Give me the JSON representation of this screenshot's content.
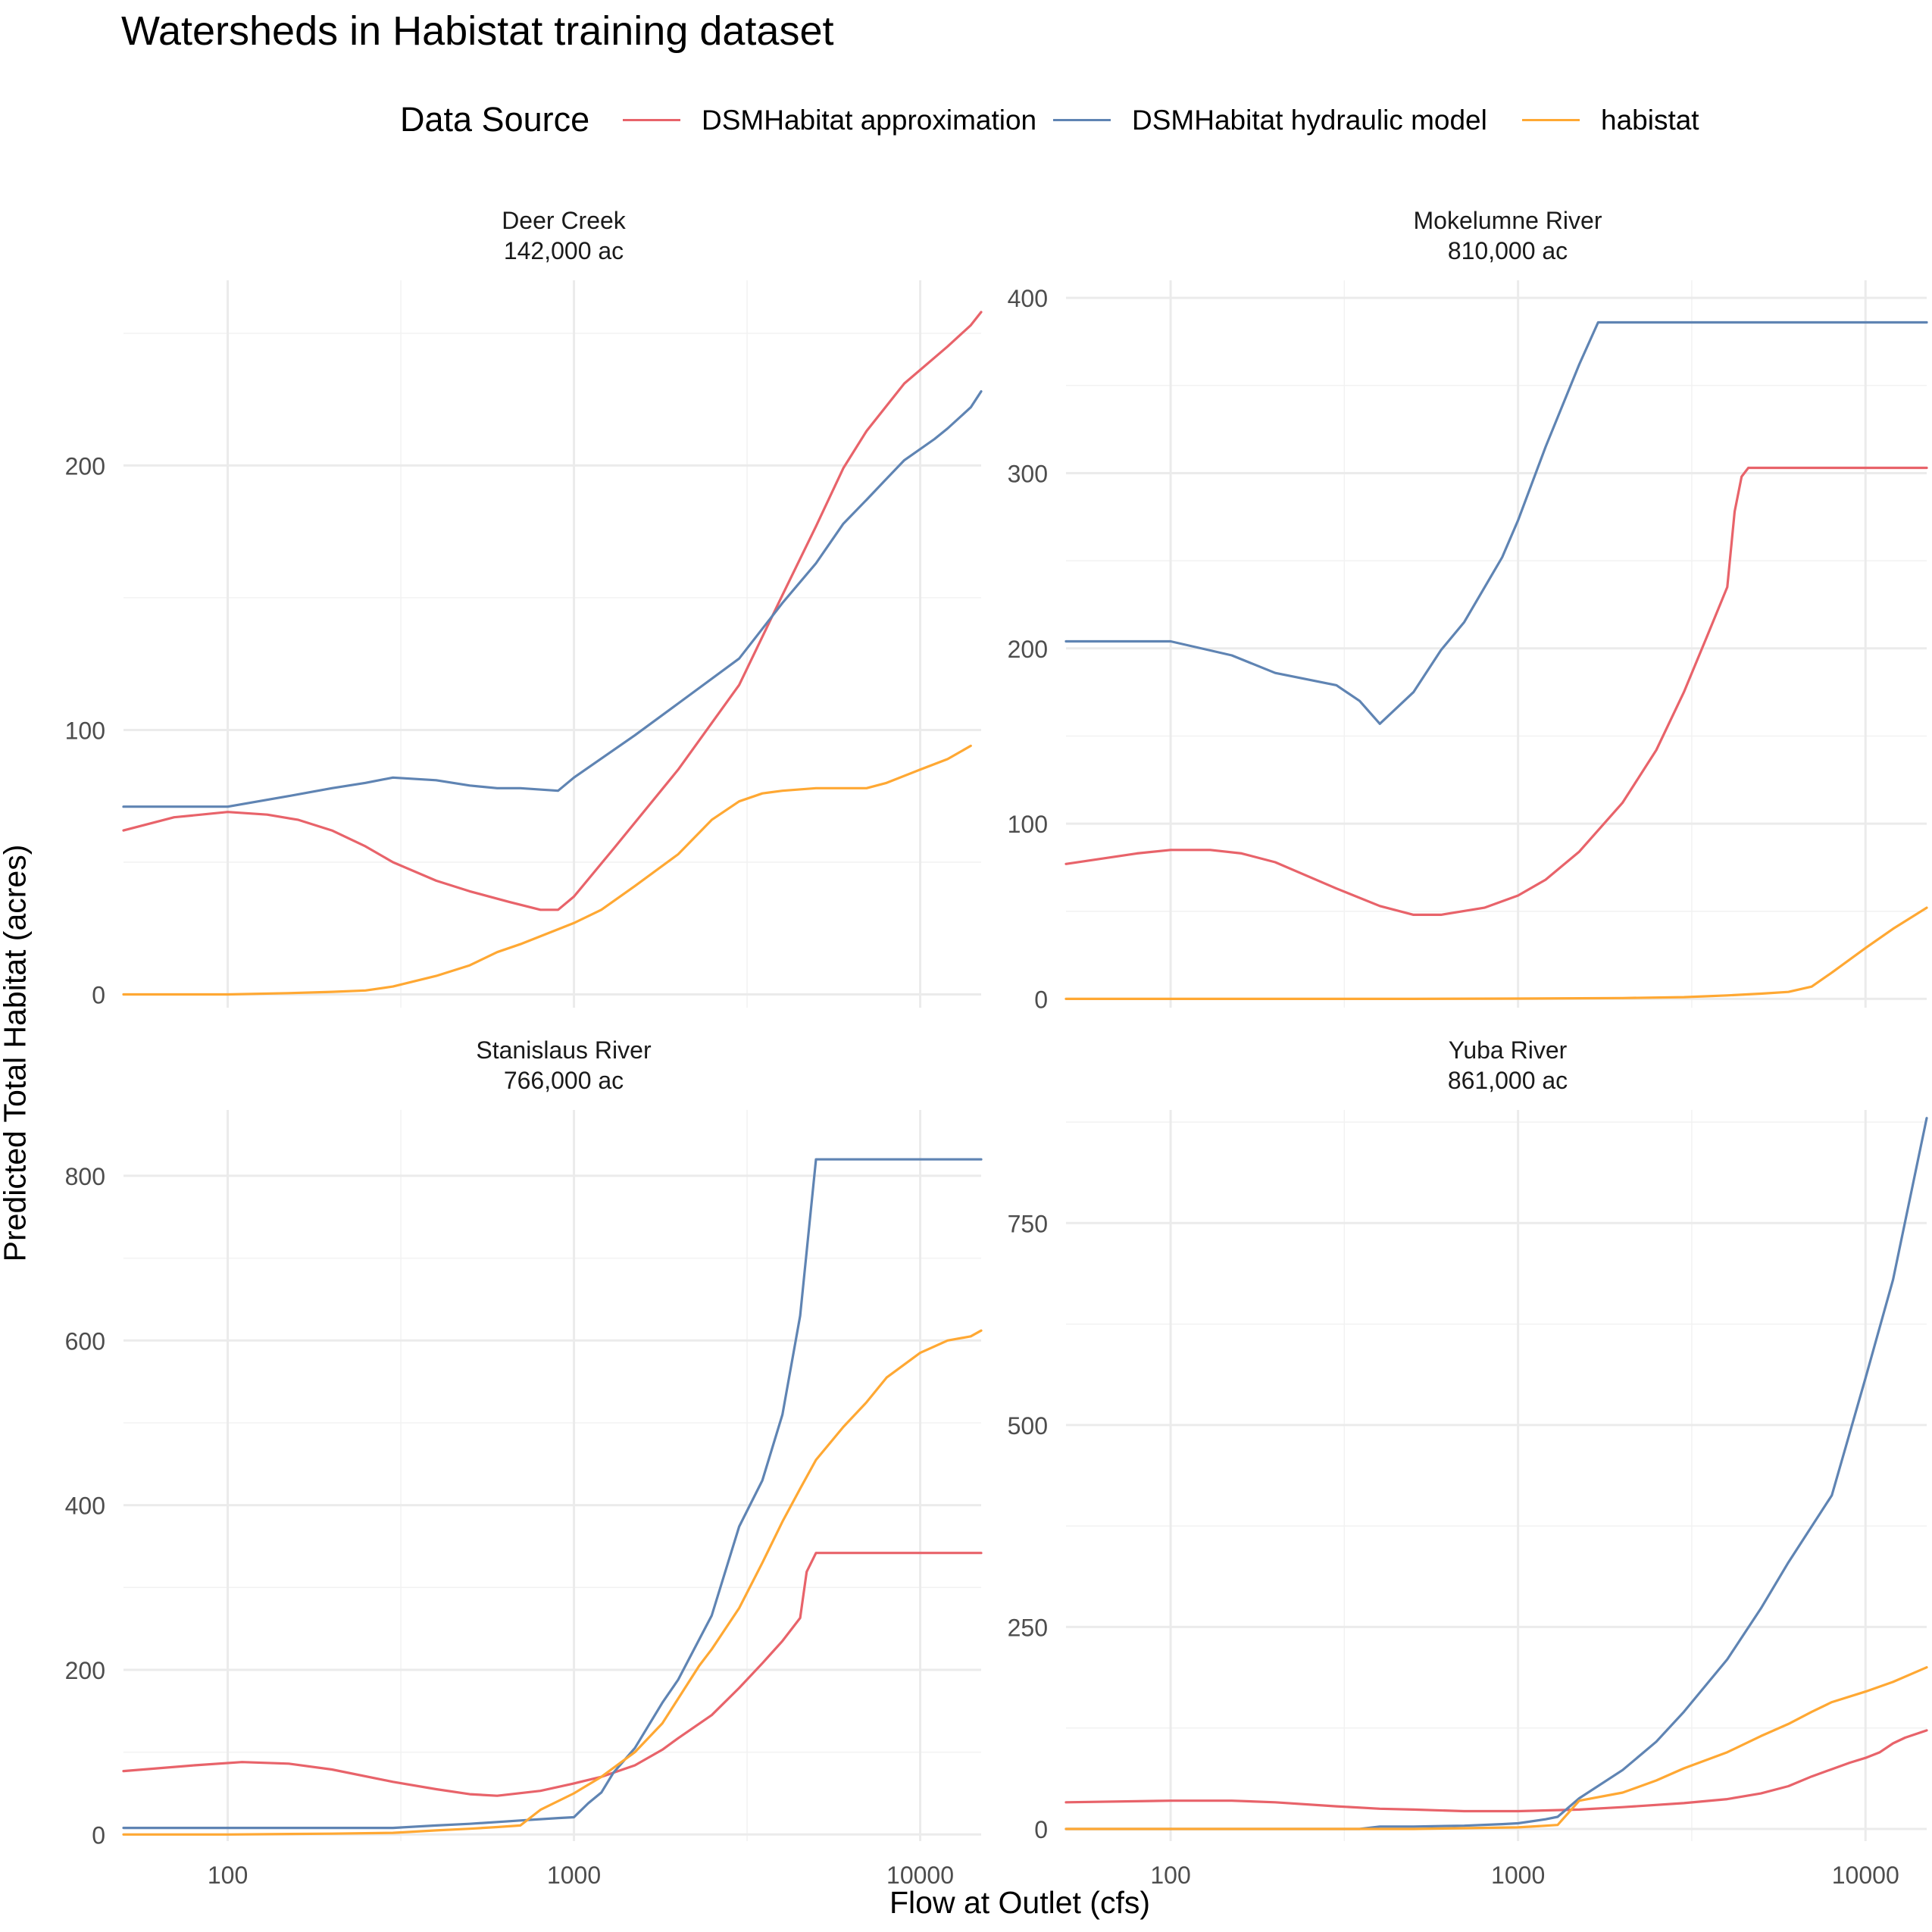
{
  "chart_data": {
    "type": "line",
    "title": "Watersheds in Habistat training dataset",
    "xlabel": "Flow at Outlet (cfs)",
    "ylabel": "Predicted Total Habitat (acres)",
    "x_scale": "log10",
    "x_ticks": [
      100,
      1000,
      10000
    ],
    "x_tick_labels": [
      "100",
      "1000",
      "10000"
    ],
    "xlim": [
      50,
      15000
    ],
    "grid": true,
    "legend": {
      "title": "Data Source",
      "position": "top",
      "entries": [
        {
          "name": "DSMHabitat approximation",
          "color": "#E8636A"
        },
        {
          "name": "DSMHabitat hydraulic model",
          "color": "#5F84B3"
        },
        {
          "name": "habistat",
          "color": "#FFA833"
        }
      ]
    },
    "panels": [
      {
        "title": "Deer Creek",
        "subtitle": "142,000 ac",
        "ylim": [
          -5,
          270
        ],
        "y_ticks": [
          0,
          100,
          200
        ],
        "y_tick_labels": [
          "0",
          "100",
          "200"
        ],
        "series": [
          {
            "name": "DSMHabitat approximation",
            "x": [
              50,
              70,
              100,
              130,
              160,
              200,
              250,
              300,
              400,
              500,
              650,
              800,
              900,
              1000,
              1300,
              2000,
              3000,
              4000,
              5000,
              6000,
              7000,
              9000,
              12000,
              14000,
              15000
            ],
            "y": [
              62,
              67,
              69,
              68,
              66,
              62,
              56,
              50,
              43,
              39,
              35,
              32,
              32,
              37,
              55,
              85,
              117,
              151,
              177,
              199,
              213,
              231,
              245,
              253,
              258
            ]
          },
          {
            "name": "DSMHabitat hydraulic model",
            "x": [
              50,
              100,
              150,
              200,
              250,
              300,
              400,
              500,
              600,
              700,
              900,
              1000,
              1500,
              2000,
              3000,
              4000,
              5000,
              6000,
              7000,
              8000,
              9000,
              11000,
              12000,
              14000,
              15000
            ],
            "y": [
              71,
              71,
              75,
              78,
              80,
              82,
              81,
              79,
              78,
              78,
              77,
              82,
              98,
              110,
              127,
              148,
              163,
              178,
              187,
              195,
              202,
              210,
              214,
              222,
              228
            ]
          },
          {
            "name": "habistat",
            "x": [
              50,
              100,
              150,
              200,
              250,
              300,
              400,
              500,
              600,
              700,
              800,
              1000,
              1200,
              1500,
              2000,
              2500,
              3000,
              3500,
              4000,
              5000,
              6000,
              7000,
              8000,
              10000,
              12000,
              14000
            ],
            "y": [
              0,
              0,
              0.5,
              1,
              1.5,
              3,
              7,
              11,
              16,
              19,
              22,
              27,
              32,
              41,
              53,
              66,
              73,
              76,
              77,
              78,
              78,
              78,
              80,
              85,
              89,
              94
            ]
          }
        ]
      },
      {
        "title": "Mokelumne River",
        "subtitle": "810,000 ac",
        "ylim": [
          -5,
          410
        ],
        "y_ticks": [
          0,
          100,
          200,
          300,
          400
        ],
        "y_tick_labels": [
          "0",
          "100",
          "200",
          "300",
          "400"
        ],
        "series": [
          {
            "name": "DSMHabitat approximation",
            "x": [
              50,
              80,
              100,
              130,
              160,
              200,
              300,
              400,
              500,
              600,
              800,
              1000,
              1200,
              1500,
              2000,
              2500,
              3000,
              3500,
              4000,
              4200,
              4400,
              4600,
              5000,
              10000,
              15000
            ],
            "y": [
              77,
              83,
              85,
              85,
              83,
              78,
              63,
              53,
              48,
              48,
              52,
              59,
              68,
              84,
              112,
              142,
              175,
              207,
              235,
              278,
              298,
              303,
              303,
              303,
              303
            ]
          },
          {
            "name": "DSMHabitat hydraulic model",
            "x": [
              50,
              100,
              150,
              200,
              300,
              350,
              400,
              500,
              600,
              700,
              900,
              1000,
              1200,
              1500,
              1700,
              2000,
              5000,
              10000,
              15000
            ],
            "y": [
              204,
              204,
              196,
              186,
              179,
              170,
              157,
              175,
              199,
              215,
              252,
              273,
              315,
              362,
              386,
              386,
              386,
              386,
              386
            ]
          },
          {
            "name": "habistat",
            "x": [
              50,
              100,
              500,
              1000,
              2000,
              3000,
              4000,
              5000,
              6000,
              7000,
              8000,
              10000,
              12000,
              15000
            ],
            "y": [
              0,
              0,
              0,
              0.2,
              0.5,
              1,
              2,
              3,
              4,
              7,
              15,
              29,
              40,
              52
            ]
          }
        ]
      },
      {
        "title": "Stanislaus River",
        "subtitle": "766,000 ac",
        "ylim": [
          -8,
          880
        ],
        "y_ticks": [
          0,
          200,
          400,
          600,
          800
        ],
        "y_tick_labels": [
          "0",
          "200",
          "400",
          "600",
          "800"
        ],
        "series": [
          {
            "name": "DSMHabitat approximation",
            "x": [
              50,
              80,
              110,
              150,
              200,
              300,
              400,
              500,
              600,
              800,
              1000,
              1200,
              1500,
              1800,
              2000,
              2500,
              3000,
              3500,
              4000,
              4500,
              4700,
              5000,
              10000,
              15000
            ],
            "y": [
              77,
              84,
              88,
              86,
              79,
              64,
              55,
              49,
              47,
              53,
              62,
              70,
              84,
              103,
              117,
              145,
              178,
              208,
              235,
              263,
              319,
              342,
              342,
              342
            ]
          },
          {
            "name": "DSMHabitat hydraulic model",
            "x": [
              50,
              100,
              200,
              300,
              400,
              500,
              700,
              900,
              1000,
              1100,
              1200,
              1300,
              1500,
              1800,
              2000,
              2500,
              3000,
              3500,
              4000,
              4500,
              5000,
              10000,
              15000
            ],
            "y": [
              8,
              8,
              8,
              8,
              11,
              13,
              17,
              20,
              21,
              38,
              51,
              75,
              105,
              160,
              188,
              266,
              374,
              430,
              510,
              630,
              820,
              820,
              820
            ]
          },
          {
            "name": "habistat",
            "x": [
              50,
              100,
              200,
              300,
              400,
              500,
              600,
              700,
              800,
              1000,
              1200,
              1500,
              1800,
              2000,
              2300,
              2500,
              3000,
              3500,
              4000,
              4500,
              5000,
              6000,
              7000,
              8000,
              10000,
              12000,
              14000,
              15000
            ],
            "y": [
              0,
              0,
              1,
              2,
              5,
              7,
              9,
              11,
              30,
              50,
              70,
              100,
              135,
              165,
              205,
              225,
              275,
              330,
              380,
              420,
              455,
              495,
              525,
              555,
              585,
              600,
              605,
              612
            ]
          }
        ]
      },
      {
        "title": "Yuba River",
        "subtitle": "861,000 ac",
        "ylim": [
          -15,
          890
        ],
        "y_ticks": [
          0,
          250,
          500,
          750
        ],
        "y_tick_labels": [
          "0",
          "250",
          "500",
          "750"
        ],
        "series": [
          {
            "name": "DSMHabitat approximation",
            "x": [
              50,
              100,
              150,
              200,
              300,
              400,
              500,
              700,
              1000,
              1500,
              2000,
              3000,
              4000,
              5000,
              6000,
              7000,
              8000,
              9000,
              10000,
              11000,
              12000,
              13000,
              15000
            ],
            "y": [
              33,
              35,
              35,
              33,
              28,
              25,
              24,
              22,
              22,
              24,
              27,
              32,
              37,
              44,
              53,
              65,
              74,
              82,
              88,
              95,
              106,
              113,
              122
            ]
          },
          {
            "name": "DSMHabitat hydraulic model",
            "x": [
              50,
              100,
              200,
              350,
              400,
              500,
              700,
              900,
              1000,
              1200,
              1300,
              1500,
              2000,
              2500,
              3000,
              4000,
              5000,
              6000,
              8000,
              10000,
              12000,
              15000
            ],
            "y": [
              0,
              0,
              0,
              0,
              3,
              3,
              4,
              6,
              7,
              12,
              15,
              38,
              73,
              108,
              145,
              210,
              273,
              330,
              413,
              558,
              680,
              880
            ]
          },
          {
            "name": "habistat",
            "x": [
              50,
              100,
              500,
              1000,
              1200,
              1300,
              1500,
              2000,
              2500,
              3000,
              4000,
              5000,
              6000,
              7000,
              8000,
              10000,
              12000,
              15000
            ],
            "y": [
              0,
              0,
              0,
              2,
              4,
              5,
              35,
              45,
              60,
              75,
              95,
              115,
              130,
              145,
              157,
              170,
              182,
              200
            ]
          }
        ]
      }
    ]
  }
}
